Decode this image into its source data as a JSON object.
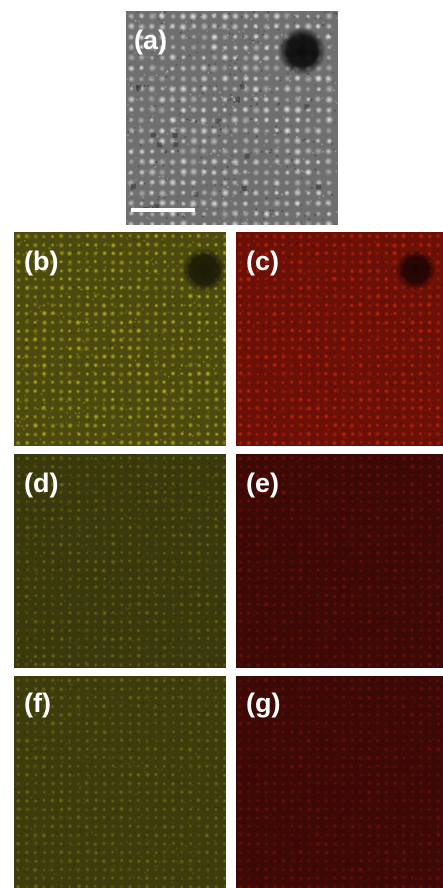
{
  "figure": {
    "panels": [
      {
        "id": "a",
        "label": "(a)",
        "kind": "haadf-image",
        "tone": "grayscale",
        "colors": {
          "bg": "#6f6f6f",
          "spot": "#f2f2f2",
          "defect": "#0c0c0c"
        }
      },
      {
        "id": "b",
        "label": "(b)",
        "kind": "elemental-map",
        "tone": "yellow",
        "colors": {
          "bg": "#4d4a10",
          "spot": "#c8c21e",
          "dark": "#1c1b06"
        }
      },
      {
        "id": "c",
        "label": "(c)",
        "kind": "elemental-map",
        "tone": "red",
        "colors": {
          "bg": "#6a1006",
          "spot": "#d8280d",
          "dark": "#220504"
        }
      },
      {
        "id": "d",
        "label": "(d)",
        "kind": "elemental-map",
        "tone": "yellow-dim",
        "colors": {
          "bg": "#3a390d",
          "spot": "#7a7418",
          "dark": "#1a1906"
        }
      },
      {
        "id": "e",
        "label": "(e)",
        "kind": "elemental-map",
        "tone": "red-dim",
        "colors": {
          "bg": "#3d0906",
          "spot": "#7e1409",
          "dark": "#1c0403"
        }
      },
      {
        "id": "f",
        "label": "(f)",
        "kind": "elemental-map",
        "tone": "yellow-dim",
        "colors": {
          "bg": "#3e3c0d",
          "spot": "#7c7618",
          "dark": "#1b1a06"
        }
      },
      {
        "id": "g",
        "label": "(g)",
        "kind": "elemental-map",
        "tone": "red-dim",
        "colors": {
          "bg": "#3d0906",
          "spot": "#7a1309",
          "dark": "#1c0403"
        }
      }
    ],
    "scale_bar": {
      "color": "#ffffff"
    }
  }
}
